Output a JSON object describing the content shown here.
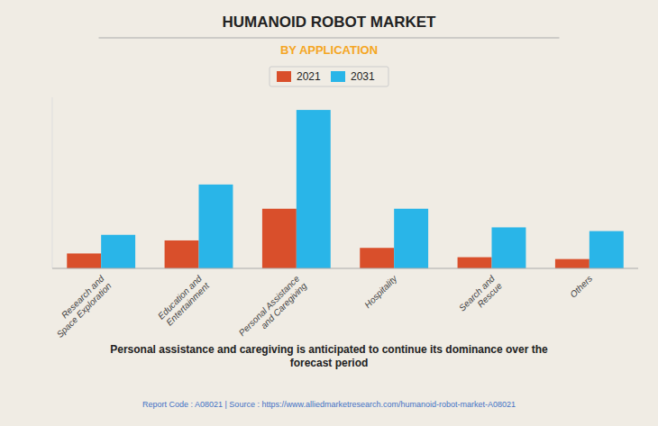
{
  "chart_data": {
    "type": "bar",
    "title": "HUMANOID ROBOT MARKET",
    "subtitle": "BY APPLICATION",
    "categories": [
      "Research and\nSpace Exploration",
      "Education and\nEntertainment",
      "Personal Assistance\nand Caregiving",
      "Hospitality",
      "Search and\nRescue",
      "Others"
    ],
    "series": [
      {
        "name": "2021",
        "color": "#d94f2b",
        "values": [
          0.8,
          1.5,
          3.2,
          1.1,
          0.6,
          0.5
        ]
      },
      {
        "name": "2031",
        "color": "#29b5e8",
        "values": [
          1.8,
          4.5,
          8.5,
          3.2,
          2.2,
          2.0
        ]
      }
    ],
    "ylim": [
      0,
      9.18
    ],
    "yticks": [],
    "grid": false,
    "legend": "top",
    "tick_labels": "x",
    "annotations": [
      "Personal assistance and caregiving is anticipated to continue its dominance over the\nforecast period",
      "Report Code : A08021  |  Source : https://www.alliedmarketresearch.com/humanoid-robot-market-A08021"
    ]
  }
}
